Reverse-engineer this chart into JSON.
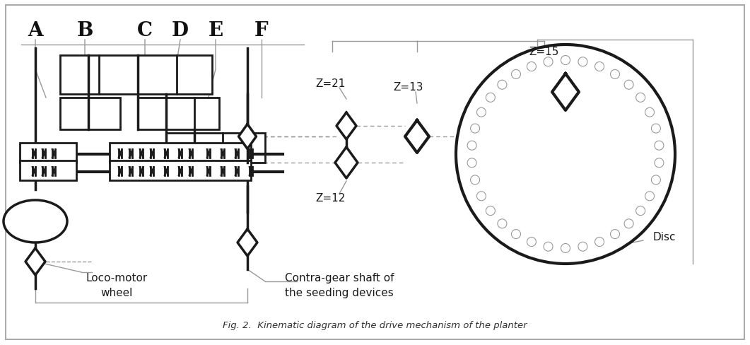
{
  "bg_color": "#ffffff",
  "line_color": "#1a1a1a",
  "gray_color": "#999999",
  "lw_main": 2.0,
  "lw_shaft": 2.5,
  "lw_thin": 1.0,
  "title": "Fig. 2.  Kinematic diagram of the drive mechanism of the planter",
  "label_z21": "Z=21",
  "label_z13": "Z=13",
  "label_z15": "Z=15",
  "label_z12": "Z=12",
  "loco_label": "Loco-motor\nwheel",
  "contra_label": "Contra-gear shaft of\nthe seeding devices",
  "disc_label": "Disc"
}
